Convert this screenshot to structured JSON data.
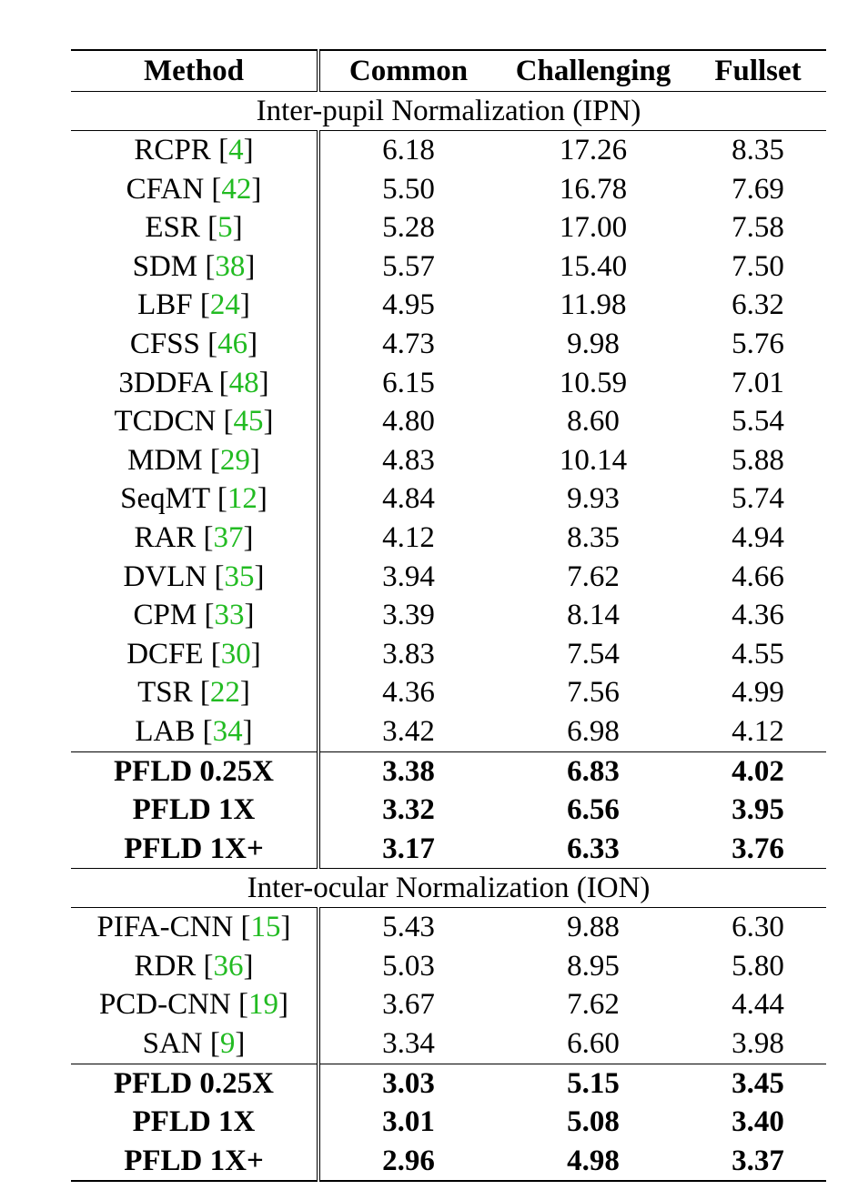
{
  "table": {
    "headers": [
      "Method",
      "Common",
      "Challenging",
      "Fullset"
    ],
    "sections": [
      {
        "title": "Inter-pupil Normalization (IPN)",
        "baselines": [
          {
            "method": "RCPR",
            "ref": "4",
            "common": "6.18",
            "challenging": "17.26",
            "fullset": "8.35"
          },
          {
            "method": "CFAN",
            "ref": "42",
            "common": "5.50",
            "challenging": "16.78",
            "fullset": "7.69"
          },
          {
            "method": "ESR",
            "ref": "5",
            "common": "5.28",
            "challenging": "17.00",
            "fullset": "7.58"
          },
          {
            "method": "SDM",
            "ref": "38",
            "common": "5.57",
            "challenging": "15.40",
            "fullset": "7.50"
          },
          {
            "method": "LBF",
            "ref": "24",
            "common": "4.95",
            "challenging": "11.98",
            "fullset": "6.32"
          },
          {
            "method": "CFSS",
            "ref": "46",
            "common": "4.73",
            "challenging": "9.98",
            "fullset": "5.76"
          },
          {
            "method": "3DDFA",
            "ref": "48",
            "common": "6.15",
            "challenging": "10.59",
            "fullset": "7.01"
          },
          {
            "method": "TCDCN",
            "ref": "45",
            "common": "4.80",
            "challenging": "8.60",
            "fullset": "5.54"
          },
          {
            "method": "MDM",
            "ref": "29",
            "common": "4.83",
            "challenging": "10.14",
            "fullset": "5.88"
          },
          {
            "method": "SeqMT",
            "ref": "12",
            "common": "4.84",
            "challenging": "9.93",
            "fullset": "5.74"
          },
          {
            "method": "RAR",
            "ref": "37",
            "common": "4.12",
            "challenging": "8.35",
            "fullset": "4.94"
          },
          {
            "method": "DVLN",
            "ref": "35",
            "common": "3.94",
            "challenging": "7.62",
            "fullset": "4.66"
          },
          {
            "method": "CPM",
            "ref": "33",
            "common": "3.39",
            "challenging": "8.14",
            "fullset": "4.36"
          },
          {
            "method": "DCFE",
            "ref": "30",
            "common": "3.83",
            "challenging": "7.54",
            "fullset": "4.55"
          },
          {
            "method": "TSR",
            "ref": "22",
            "common": "4.36",
            "challenging": "7.56",
            "fullset": "4.99"
          },
          {
            "method": "LAB",
            "ref": "34",
            "common": "3.42",
            "challenging": "6.98",
            "fullset": "4.12"
          }
        ],
        "ours": [
          {
            "method": "PFLD 0.25X",
            "common": "3.38",
            "challenging": "6.83",
            "fullset": "4.02"
          },
          {
            "method": "PFLD 1X",
            "common": "3.32",
            "challenging": "6.56",
            "fullset": "3.95"
          },
          {
            "method": "PFLD 1X+",
            "common": "3.17",
            "challenging": "6.33",
            "fullset": "3.76"
          }
        ]
      },
      {
        "title": "Inter-ocular Normalization (ION)",
        "baselines": [
          {
            "method": "PIFA-CNN",
            "ref": "15",
            "common": "5.43",
            "challenging": "9.88",
            "fullset": "6.30"
          },
          {
            "method": "RDR",
            "ref": "36",
            "common": "5.03",
            "challenging": "8.95",
            "fullset": "5.80"
          },
          {
            "method": "PCD-CNN",
            "ref": "19",
            "common": "3.67",
            "challenging": "7.62",
            "fullset": "4.44"
          },
          {
            "method": "SAN",
            "ref": "9",
            "common": "3.34",
            "challenging": "6.60",
            "fullset": "3.98"
          }
        ],
        "ours": [
          {
            "method": "PFLD 0.25X",
            "common": "3.03",
            "challenging": "5.15",
            "fullset": "3.45"
          },
          {
            "method": "PFLD 1X",
            "common": "3.01",
            "challenging": "5.08",
            "fullset": "3.40"
          },
          {
            "method": "PFLD 1X+",
            "common": "2.96",
            "challenging": "4.98",
            "fullset": "3.37"
          }
        ]
      }
    ]
  }
}
